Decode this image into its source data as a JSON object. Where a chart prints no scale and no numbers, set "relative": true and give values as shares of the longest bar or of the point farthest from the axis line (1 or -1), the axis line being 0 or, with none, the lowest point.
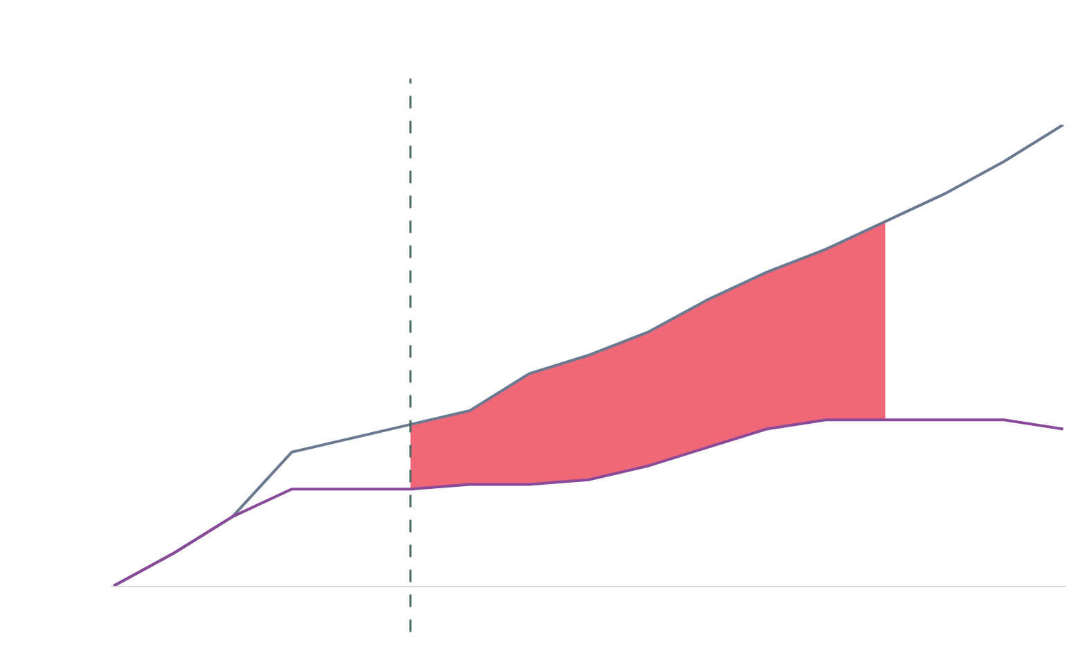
{
  "chart_data": {
    "type": "line",
    "relative": true,
    "categories": [
      null,
      null,
      null,
      null,
      null,
      null,
      null,
      null,
      null,
      null,
      null,
      null,
      null,
      null,
      null,
      null,
      null
    ],
    "series": [
      {
        "color": "#6a7890",
        "values": [
          0,
          0.07,
          0.15,
          0.29,
          0.32,
          0.35,
          0.38,
          0.46,
          0.5,
          0.55,
          0.62,
          0.68,
          0.73,
          0.79,
          0.85,
          0.92,
          1
        ],
        "lower": [
          null,
          null,
          null,
          null,
          null,
          0.21,
          0.22,
          0.22,
          0.23,
          0.26,
          0.3,
          0.34,
          0.36,
          0.36,
          null,
          null,
          null
        ],
        "upper": [
          null,
          null,
          null,
          null,
          null,
          0.35,
          0.38,
          0.46,
          0.5,
          0.55,
          0.62,
          0.68,
          0.73,
          0.79,
          null,
          null,
          null
        ]
      },
      {
        "color": "#8a4a9a",
        "values": [
          0,
          0.07,
          0.15,
          0.21,
          0.21,
          0.21,
          0.22,
          0.22,
          0.23,
          0.26,
          0.3,
          0.34,
          0.36,
          0.36,
          0.36,
          0.36,
          0.34
        ]
      }
    ],
    "marker": "none",
    "line_style": "solid"
  }
}
